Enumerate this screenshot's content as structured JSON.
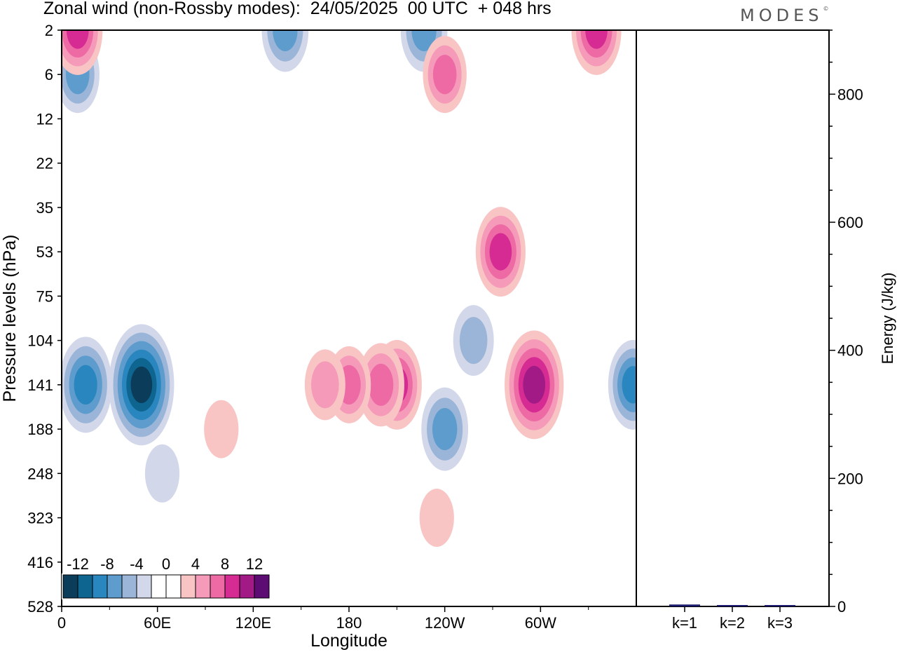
{
  "header": {
    "title": "Zonal wind (non-Rossby modes):  24/05/2025  00 UTC  + 048 hrs",
    "logo": "MODES"
  },
  "colors": {
    "scale": [
      "#0b3d5a",
      "#0e6590",
      "#2a86be",
      "#5d9ccc",
      "#9ab5d8",
      "#d2d7ea",
      "#ffffff",
      "#ffffff",
      "#f8c5c4",
      "#f59ab9",
      "#ed6aa5",
      "#d52b92",
      "#a11a86",
      "#5c0c73"
    ]
  },
  "chart_data": [
    {
      "type": "heatmap",
      "title": "Zonal wind (non-Rossby modes):  24/05/2025  00 UTC  + 048 hrs",
      "xlabel": "Longitude",
      "ylabel": "Pressure levels (hPa)",
      "x_ticks": [
        "0",
        "60E",
        "120E",
        "180",
        "120W",
        "60W"
      ],
      "y_ticks": [
        "2",
        "6",
        "12",
        "22",
        "35",
        "53",
        "75",
        "104",
        "141",
        "188",
        "248",
        "323",
        "416",
        "528"
      ],
      "colorbar": {
        "labels": [
          "-12",
          "-8",
          "-4",
          "0",
          "4",
          "8",
          "12"
        ],
        "values": [
          -14,
          -12,
          -10,
          -8,
          -6,
          -4,
          -2,
          0,
          2,
          4,
          6,
          8,
          10,
          12,
          14
        ]
      },
      "features": [
        {
          "lon": 50,
          "level": "141",
          "value": -13
        },
        {
          "lon": 15,
          "level": "141",
          "value": -9
        },
        {
          "lon": 10,
          "level": "6",
          "value": -6
        },
        {
          "lon": 10,
          "level": "2",
          "value": 8
        },
        {
          "lon": 140,
          "level": "2",
          "value": -7
        },
        {
          "lon": 227,
          "level": "2",
          "value": -7
        },
        {
          "lon": 240,
          "level": "6",
          "value": 6
        },
        {
          "lon": 335,
          "level": "2",
          "value": 8
        },
        {
          "lon": 275,
          "level": "53",
          "value": 8
        },
        {
          "lon": 296,
          "level": "141",
          "value": 11
        },
        {
          "lon": 210,
          "level": "141",
          "value": 8
        },
        {
          "lon": 200,
          "level": "141",
          "value": 7
        },
        {
          "lon": 180,
          "level": "141",
          "value": 6
        },
        {
          "lon": 240,
          "level": "188",
          "value": -7
        },
        {
          "lon": 358,
          "level": "141",
          "value": -8
        },
        {
          "lon": 258,
          "level": "104",
          "value": -5
        },
        {
          "lon": 165,
          "level": "141",
          "value": 5
        },
        {
          "lon": 100,
          "level": "188",
          "value": 3
        },
        {
          "lon": 235,
          "level": "323",
          "value": 3
        },
        {
          "lon": 63,
          "level": "248",
          "value": -3
        }
      ]
    },
    {
      "type": "bar",
      "title": "",
      "xlabel": "",
      "ylabel": "Energy (J/kg)",
      "categories": [
        "k=1",
        "k=2",
        "k=3"
      ],
      "values": [
        3,
        1.5,
        1
      ],
      "ylim": [
        0,
        900
      ],
      "y_ticks": [
        "0",
        "200",
        "400",
        "600",
        "800"
      ],
      "color": "#1a1a6e"
    }
  ]
}
